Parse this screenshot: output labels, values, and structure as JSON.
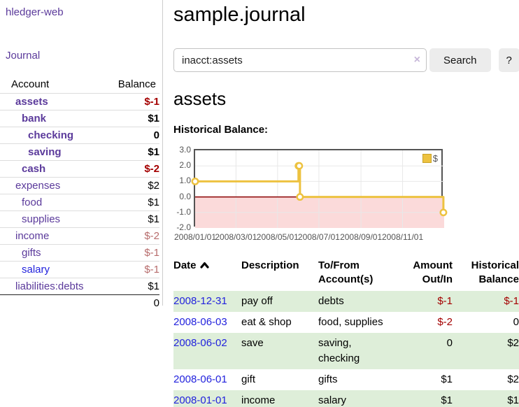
{
  "sidebar": {
    "brand": "hledger-web",
    "nav_journal": "Journal",
    "accounts_table": {
      "header_account": "Account",
      "header_balance": "Balance",
      "rows": [
        {
          "name": "assets",
          "balance": "$-1",
          "level": 1,
          "bold": true,
          "balance_style": "neg-strong"
        },
        {
          "name": "bank",
          "balance": "$1",
          "level": 2,
          "bold": true,
          "balance_style": "pos"
        },
        {
          "name": "checking",
          "balance": "0",
          "level": 3,
          "bold": true,
          "balance_style": "pos"
        },
        {
          "name": "saving",
          "balance": "$1",
          "level": 3,
          "bold": true,
          "balance_style": "pos"
        },
        {
          "name": "cash",
          "balance": "$-2",
          "level": 2,
          "bold": true,
          "balance_style": "neg-strong"
        },
        {
          "name": "expenses",
          "balance": "$2",
          "level": 1,
          "bold": false,
          "balance_style": "pos"
        },
        {
          "name": "food",
          "balance": "$1",
          "level": 2,
          "bold": false,
          "balance_style": "pos"
        },
        {
          "name": "supplies",
          "balance": "$1",
          "level": 2,
          "bold": false,
          "balance_style": "pos"
        },
        {
          "name": "income",
          "balance": "$-2",
          "level": 1,
          "bold": false,
          "balance_style": "neg-soft"
        },
        {
          "name": "gifts",
          "balance": "$-1",
          "level": 2,
          "bold": false,
          "balance_style": "neg-soft"
        },
        {
          "name": "salary",
          "balance": "$-1",
          "level": 2,
          "bold": false,
          "balance_style": "neg-soft",
          "link_color": "blue"
        },
        {
          "name": "liabilities:debts",
          "balance": "$1",
          "level": 1,
          "bold": false,
          "balance_style": "pos"
        }
      ],
      "total": "0"
    }
  },
  "header": {
    "title": "sample.journal"
  },
  "search": {
    "value": "inacct:assets",
    "clear_icon": "×",
    "button_label": "Search",
    "help_label": "?"
  },
  "account_page": {
    "heading": "assets",
    "chart_label": "Historical Balance:"
  },
  "chart_data": {
    "type": "line",
    "title": "Historical Balance:",
    "style": "step-with-markers",
    "series": [
      {
        "name": "$",
        "color": "#edc240",
        "points": [
          {
            "date": "2008-01-01",
            "x": 0.0,
            "y": 1
          },
          {
            "date": "2008-06-01",
            "x": 0.415,
            "y": 2
          },
          {
            "date": "2008-06-02",
            "x": 0.418,
            "y": 2
          },
          {
            "date": "2008-06-03",
            "x": 0.421,
            "y": 0
          },
          {
            "date": "2008-12-31",
            "x": 0.997,
            "y": -1
          }
        ]
      }
    ],
    "ylim": [
      -2.0,
      3.0
    ],
    "yticks": [
      3.0,
      2.0,
      1.0,
      0.0,
      -1.0,
      -2.0
    ],
    "xticks": [
      {
        "label": "2008/01/01",
        "x": 0.0
      },
      {
        "label": "2008/03/01",
        "x": 0.164
      },
      {
        "label": "2008/05/01",
        "x": 0.331
      },
      {
        "label": "2008/07/01",
        "x": 0.497
      },
      {
        "label": "2008/09/01",
        "x": 0.666
      },
      {
        "label": "2008/11/01",
        "x": 0.833
      }
    ],
    "grid": true,
    "gridline_color": "#e8e8e8",
    "negative_region_fill": "#fbdada",
    "zero_line_color": "#8b0000",
    "legend": {
      "label": "$",
      "swatch_color": "#edc240",
      "position": "top-right"
    }
  },
  "register_table": {
    "headers": {
      "date": "Date",
      "description": "Description",
      "accounts": "To/From Account(s)",
      "amount": "Amount Out/In",
      "balance": "Historical Balance"
    },
    "sort": {
      "column": "date",
      "direction": "ascending"
    },
    "rows": [
      {
        "date": "2008-12-31",
        "description": "pay off",
        "accounts": "debts",
        "amount": "$-1",
        "balance": "$-1"
      },
      {
        "date": "2008-06-03",
        "description": "eat & shop",
        "accounts": "food, supplies",
        "amount": "$-2",
        "balance": "0"
      },
      {
        "date": "2008-06-02",
        "description": "save",
        "accounts": "saving, checking",
        "amount": "0",
        "balance": "$2"
      },
      {
        "date": "2008-06-01",
        "description": "gift",
        "accounts": "gifts",
        "amount": "$1",
        "balance": "$2"
      },
      {
        "date": "2008-01-01",
        "description": "income",
        "accounts": "salary",
        "amount": "$1",
        "balance": "$1"
      }
    ]
  },
  "colors": {
    "link_purple": "#5b3a9b",
    "link_blue": "#2222dd",
    "negative_strong": "#a40000",
    "negative_soft": "#b76c6c",
    "row_stripe_green": "#deeed9",
    "chart_line_gold": "#edc240",
    "chart_negative_pink": "#fbdada",
    "chart_zero_line": "#8b0000",
    "button_gray": "#ececec"
  }
}
